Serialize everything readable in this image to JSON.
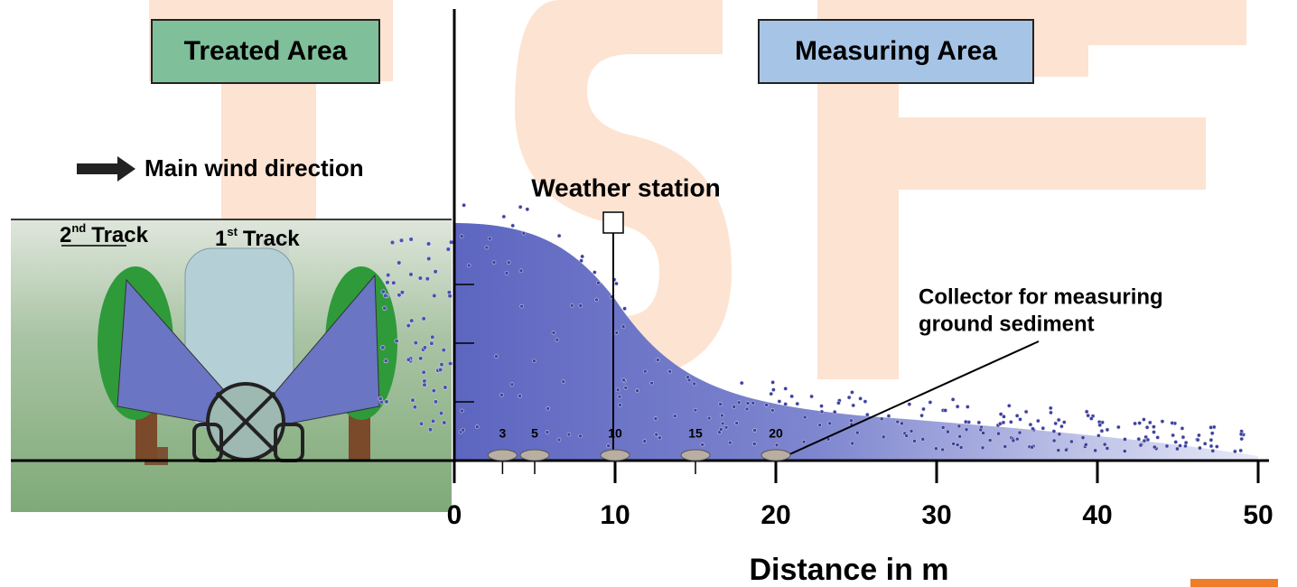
{
  "labels": {
    "treated_area": "Treated Area",
    "measuring_area": "Measuring Area",
    "wind": "Main wind direction",
    "weather_station": "Weather station",
    "collector": [
      "Collector for measuring",
      "ground sediment"
    ]
  },
  "tracks": [
    {
      "ordinal": "2",
      "suffix": "nd",
      "text": "Track"
    },
    {
      "ordinal": "1",
      "suffix": "st",
      "text": "Track"
    }
  ],
  "axis": {
    "title": "Distance in m",
    "lim": [
      0,
      50
    ],
    "ticks": [
      0,
      10,
      20,
      30,
      40,
      50
    ]
  },
  "collectors": [
    3,
    5,
    10,
    15,
    20
  ]
}
